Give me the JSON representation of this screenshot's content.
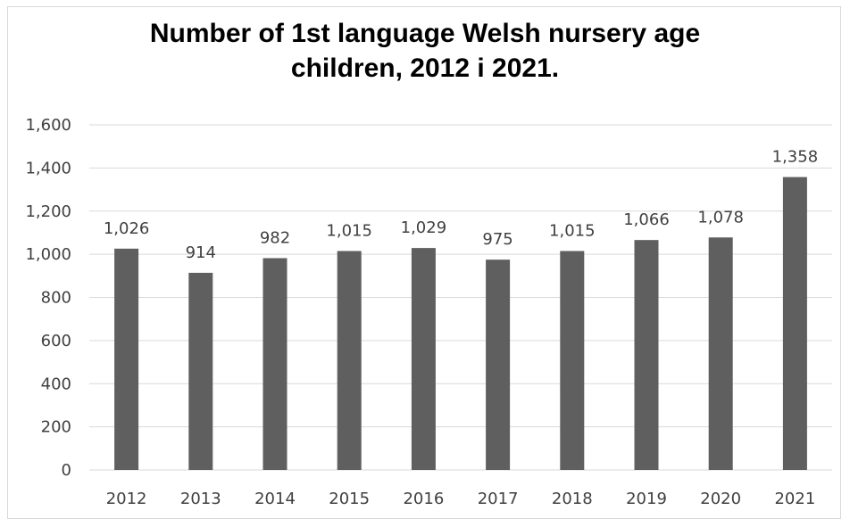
{
  "chart_data": {
    "type": "bar",
    "title_lines": [
      "Number of 1st language Welsh nursery age",
      "children, 2012 i 2021."
    ],
    "categories": [
      "2012",
      "2013",
      "2014",
      "2015",
      "2016",
      "2017",
      "2018",
      "2019",
      "2020",
      "2021"
    ],
    "values": [
      1026,
      914,
      982,
      1015,
      1029,
      975,
      1015,
      1066,
      1078,
      1358
    ],
    "data_labels": [
      "1,026",
      "914",
      "982",
      "1,015",
      "1,029",
      "975",
      "1,015",
      "1,066",
      "1,078",
      "1,358"
    ],
    "y_ticks": [
      0,
      200,
      400,
      600,
      800,
      1000,
      1200,
      1400,
      1600
    ],
    "y_tick_labels": [
      "0",
      "200",
      "400",
      "600",
      "800",
      "1,000",
      "1,200",
      "1,400",
      "1,600"
    ],
    "ylim": [
      0,
      1600
    ],
    "grid": true,
    "legend": "none",
    "bar_color": "#5f5f5f",
    "grid_color": "#d9d9d9"
  }
}
